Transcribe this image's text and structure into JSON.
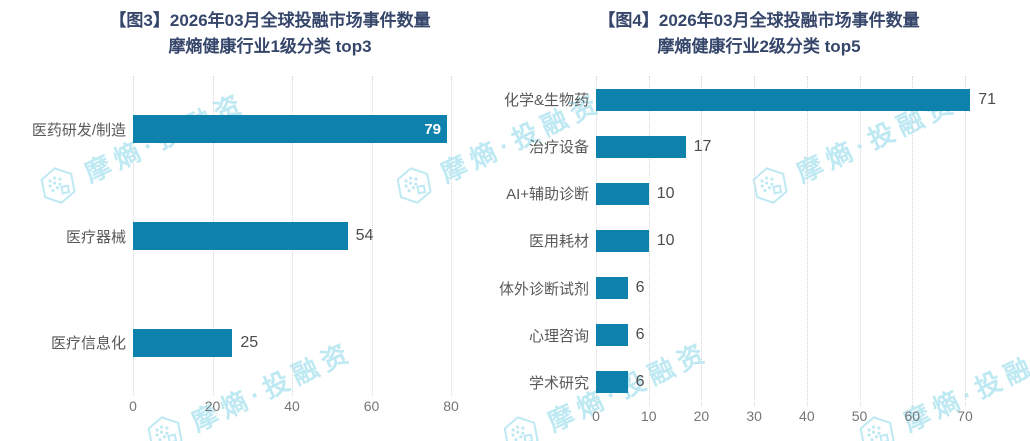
{
  "page": {
    "background": "#ffffff"
  },
  "watermark": {
    "text": "摩熵·投融资",
    "color": "#7fd4e8",
    "logo_icon": "moxi-hexagon-dots-logo"
  },
  "chart_data": [
    {
      "type": "bar",
      "orientation": "horizontal",
      "title_lines": [
        "【图3】2026年03月全球投融市场事件数量",
        "摩熵健康行业1级分类 top3"
      ],
      "categories": [
        "医药研发/制造",
        "医疗器械",
        "医疗信息化"
      ],
      "values": [
        79,
        54,
        25
      ],
      "xticks": [
        0,
        20,
        40,
        60,
        80
      ],
      "xlim": [
        0,
        80
      ],
      "grid": "vertical-dotted",
      "legend": "none",
      "bar_color": "#0e81ad",
      "title_color": "#36466b"
    },
    {
      "type": "bar",
      "orientation": "horizontal",
      "title_lines": [
        "【图4】2026年03月全球投融市场事件数量",
        "摩熵健康行业2级分类 top5"
      ],
      "categories": [
        "化学&生物药",
        "治疗设备",
        "AI+辅助诊断",
        "医用耗材",
        "体外诊断试剂",
        "心理咨询",
        "学术研究"
      ],
      "values": [
        71,
        17,
        10,
        10,
        6,
        6,
        6
      ],
      "xticks": [
        0,
        10,
        20,
        30,
        40,
        50,
        60,
        70
      ],
      "xlim": [
        0,
        70
      ],
      "grid": "vertical-dotted",
      "legend": "none",
      "bar_color": "#0e81ad",
      "title_color": "#36466b"
    }
  ]
}
